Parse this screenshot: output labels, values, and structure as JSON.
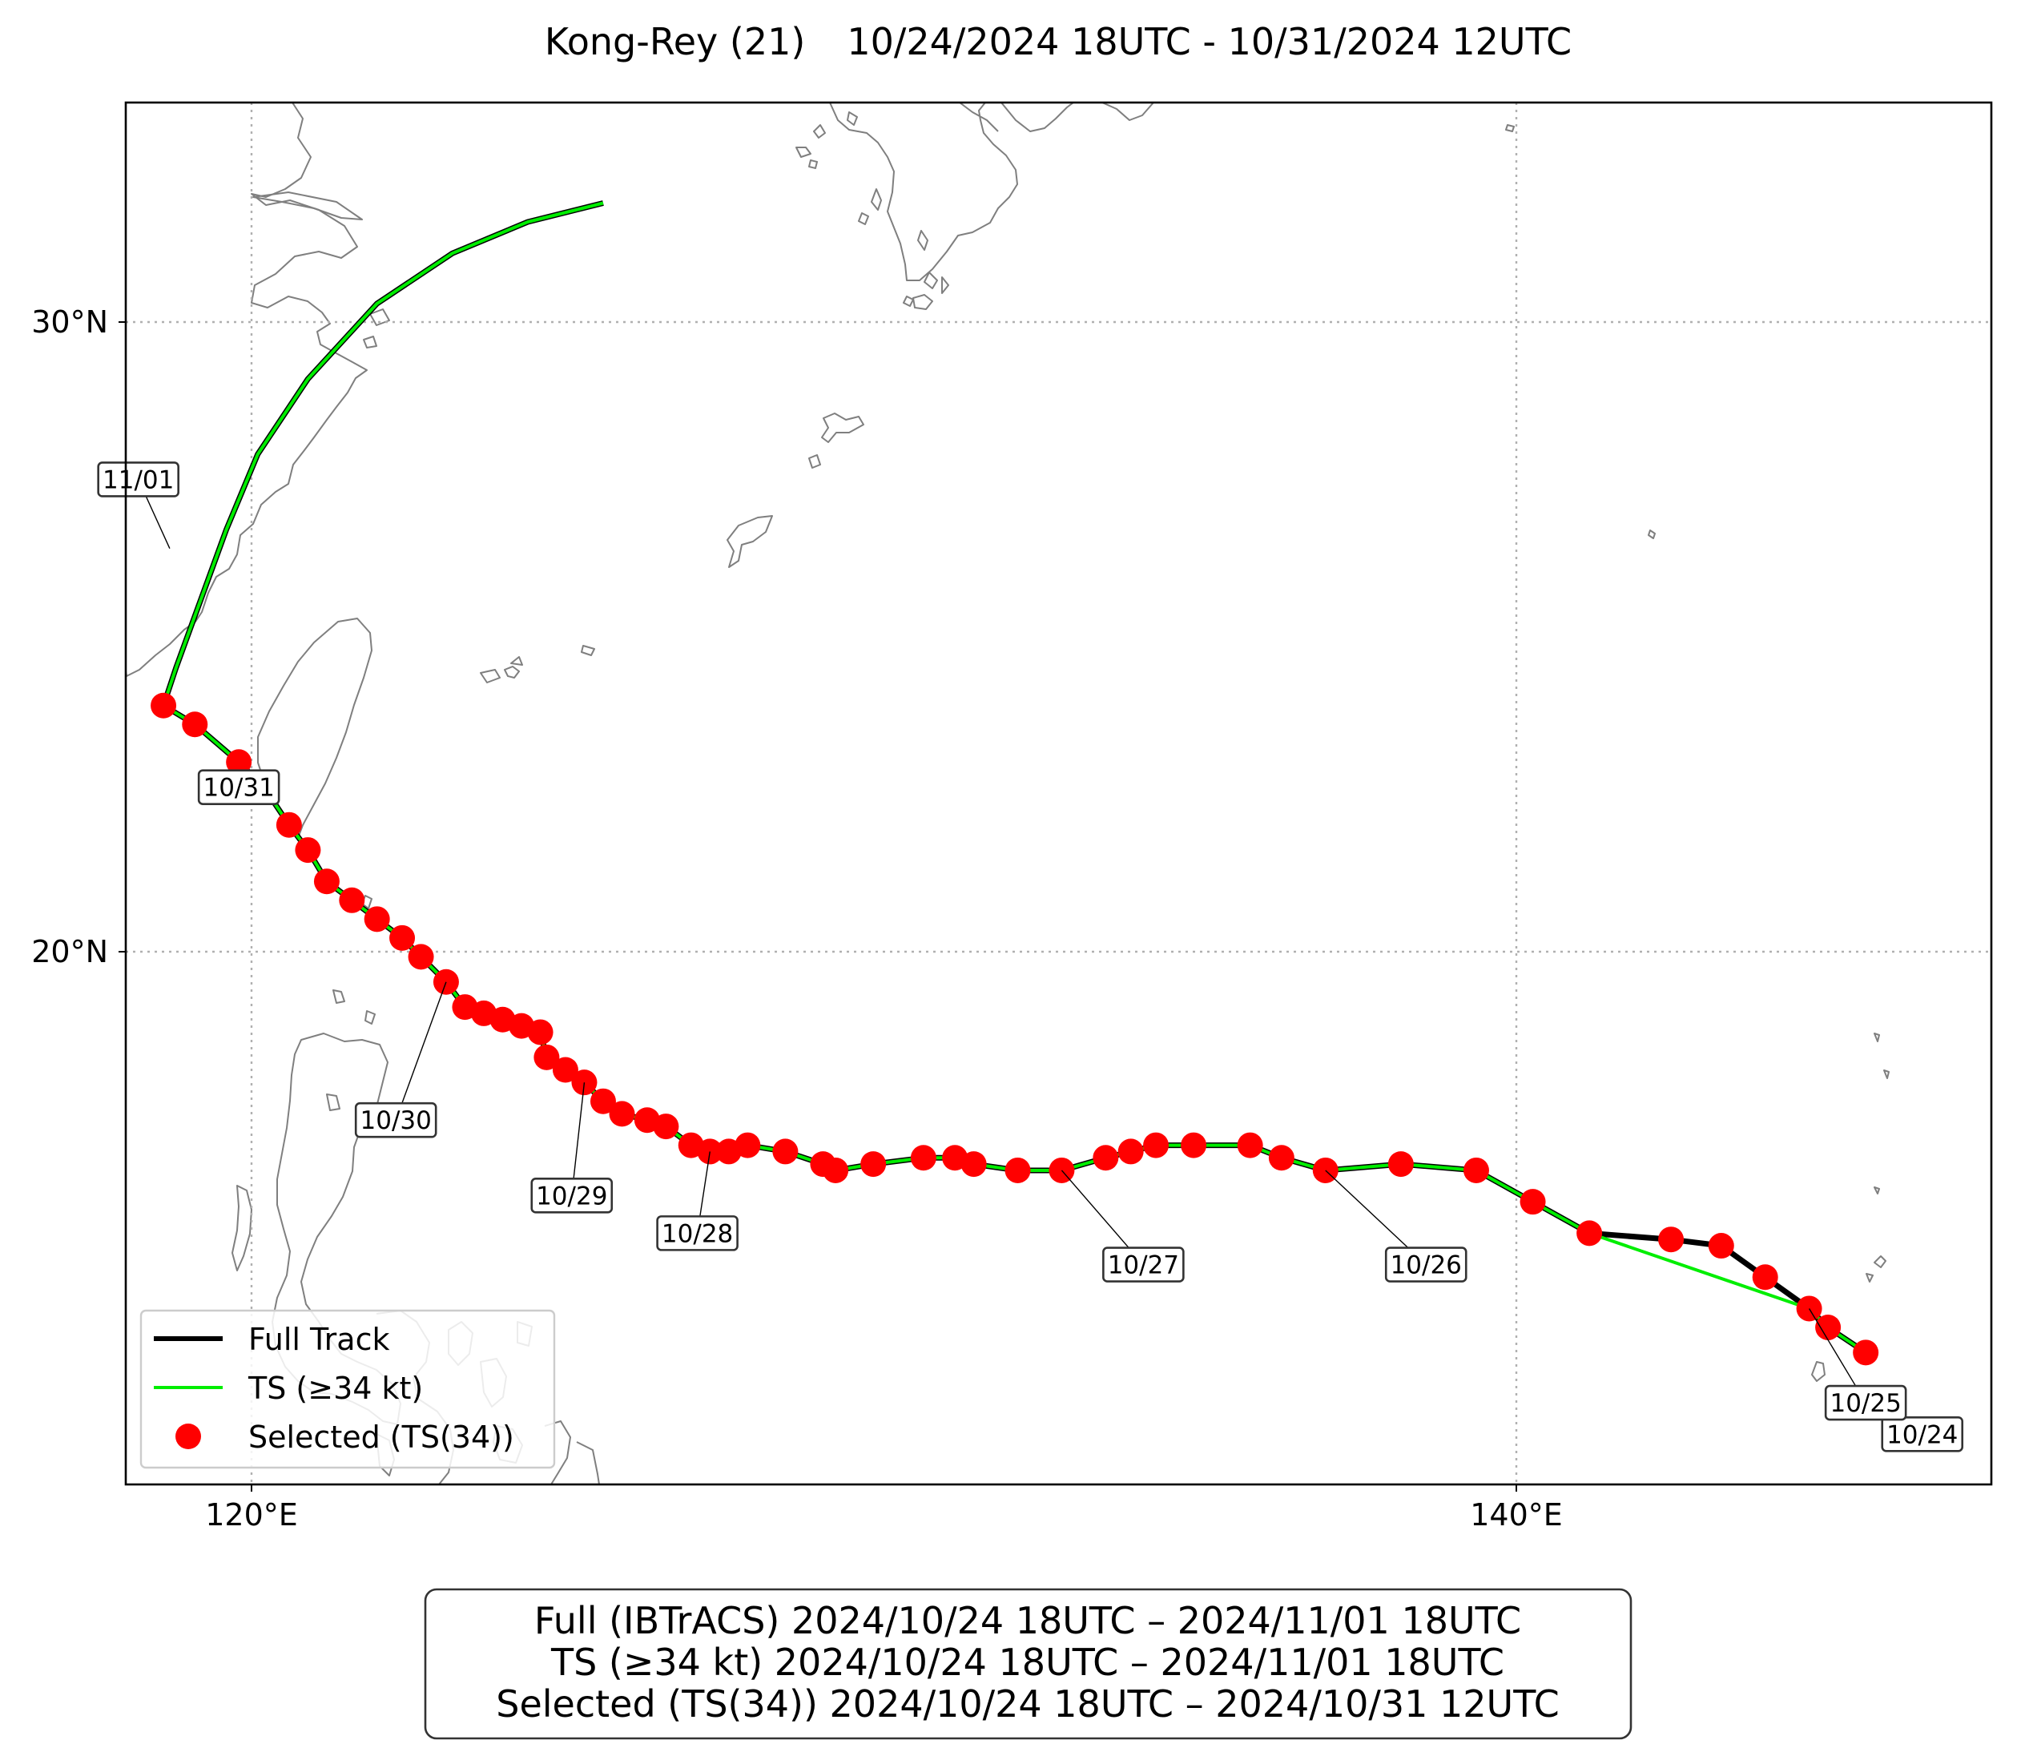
{
  "title": {
    "storm": "Kong-Rey (21)",
    "period": "10/24/2024 18UTC - 10/31/2024 12UTC"
  },
  "axes": {
    "lon_range": [
      118,
      147.7
    ],
    "lat_range": [
      11.5,
      33.5
    ],
    "lon_ticks": [
      {
        "value": 120,
        "label": "120°E"
      },
      {
        "value": 140,
        "label": "140°E"
      }
    ],
    "lat_ticks": [
      {
        "value": 20,
        "label": "20°N"
      },
      {
        "value": 30,
        "label": "30°N"
      }
    ],
    "grid": true
  },
  "colors": {
    "full_track": "#000000",
    "ts_track": "#00ee00",
    "selected": "#ff0000",
    "highlight": "#ffb3b3",
    "coast": "#7f7f7f"
  },
  "legend": {
    "placement": "lower-left",
    "items": [
      {
        "label": "Full Track",
        "kind": "line",
        "color": "#000000"
      },
      {
        "label": "TS (≥34 kt)",
        "kind": "line",
        "color": "#00ee00"
      },
      {
        "label": "Selected (TS(34))",
        "kind": "dot",
        "color": "#ff0000"
      }
    ]
  },
  "summary": [
    "Full (IBTrACS)   2024/10/24 18UTC – 2024/11/01 18UTC",
    "TS (≥34 kt)   2024/10/24 18UTC – 2024/11/01 18UTC",
    "Selected (TS(34))   2024/10/24 18UTC – 2024/10/31 12UTC"
  ],
  "chart_data": {
    "type": "scatter",
    "full_track": [
      [
        145.7,
        13.6
      ],
      [
        145.1,
        14.0
      ],
      [
        144.8,
        14.3
      ],
      [
        144.1,
        14.8
      ],
      [
        143.4,
        15.3
      ],
      [
        142.6,
        15.4
      ],
      [
        141.3,
        15.5
      ],
      [
        140.4,
        16.0
      ],
      [
        139.5,
        16.5
      ],
      [
        138.3,
        16.6
      ],
      [
        137.1,
        16.5
      ],
      [
        136.4,
        16.7
      ],
      [
        135.9,
        16.9
      ],
      [
        135.0,
        16.9
      ],
      [
        134.4,
        16.9
      ],
      [
        134.0,
        16.8
      ],
      [
        133.6,
        16.7
      ],
      [
        132.9,
        16.5
      ],
      [
        132.2,
        16.5
      ],
      [
        131.5,
        16.6
      ],
      [
        131.2,
        16.7
      ],
      [
        130.7,
        16.7
      ],
      [
        129.9,
        16.6
      ],
      [
        129.3,
        16.5
      ],
      [
        129.1,
        16.6
      ],
      [
        128.5,
        16.8
      ],
      [
        127.9,
        16.9
      ],
      [
        127.6,
        16.8
      ],
      [
        127.3,
        16.8
      ],
      [
        127.0,
        16.9
      ],
      [
        126.6,
        17.2
      ],
      [
        126.3,
        17.3
      ],
      [
        125.9,
        17.4
      ],
      [
        125.6,
        17.6
      ],
      [
        125.3,
        17.9
      ],
      [
        125.0,
        18.1
      ],
      [
        124.7,
        18.3
      ],
      [
        124.6,
        18.7
      ],
      [
        124.3,
        18.8
      ],
      [
        124.0,
        18.9
      ],
      [
        123.7,
        19.0
      ],
      [
        123.4,
        19.1
      ],
      [
        123.1,
        19.5
      ],
      [
        122.7,
        19.9
      ],
      [
        122.4,
        20.2
      ],
      [
        122.0,
        20.5
      ],
      [
        121.6,
        20.8
      ],
      [
        121.2,
        21.1
      ],
      [
        120.9,
        21.6
      ],
      [
        120.6,
        22.0
      ],
      [
        120.2,
        22.6
      ],
      [
        119.8,
        23.0
      ],
      [
        119.1,
        23.6
      ],
      [
        118.6,
        23.9
      ],
      [
        118.8,
        24.5
      ],
      [
        119.2,
        25.6
      ],
      [
        119.6,
        26.7
      ],
      [
        120.1,
        27.9
      ],
      [
        120.9,
        29.1
      ],
      [
        122.0,
        30.3
      ],
      [
        123.2,
        31.1
      ],
      [
        124.4,
        31.6
      ],
      [
        125.6,
        31.9
      ]
    ],
    "ts_track": [
      [
        145.7,
        13.6
      ],
      [
        145.1,
        14.0
      ],
      [
        144.8,
        14.3
      ],
      [
        141.3,
        15.5
      ],
      [
        140.4,
        16.0
      ],
      [
        139.5,
        16.5
      ],
      [
        138.3,
        16.6
      ],
      [
        137.1,
        16.5
      ],
      [
        136.4,
        16.7
      ],
      [
        135.9,
        16.9
      ],
      [
        135.0,
        16.9
      ],
      [
        134.4,
        16.9
      ],
      [
        134.0,
        16.8
      ],
      [
        133.6,
        16.7
      ],
      [
        132.9,
        16.5
      ],
      [
        132.2,
        16.5
      ],
      [
        131.5,
        16.6
      ],
      [
        131.2,
        16.7
      ],
      [
        130.7,
        16.7
      ],
      [
        129.9,
        16.6
      ],
      [
        129.3,
        16.5
      ],
      [
        129.1,
        16.6
      ],
      [
        128.5,
        16.8
      ],
      [
        127.9,
        16.9
      ],
      [
        127.6,
        16.8
      ],
      [
        127.3,
        16.8
      ],
      [
        127.0,
        16.9
      ],
      [
        126.6,
        17.2
      ],
      [
        126.3,
        17.3
      ],
      [
        125.9,
        17.4
      ],
      [
        125.6,
        17.6
      ],
      [
        125.3,
        17.9
      ],
      [
        125.0,
        18.1
      ],
      [
        124.7,
        18.3
      ],
      [
        124.6,
        18.7
      ],
      [
        124.3,
        18.8
      ],
      [
        124.0,
        18.9
      ],
      [
        123.7,
        19.0
      ],
      [
        123.4,
        19.1
      ],
      [
        123.1,
        19.5
      ],
      [
        122.7,
        19.9
      ],
      [
        122.4,
        20.2
      ],
      [
        122.0,
        20.5
      ],
      [
        121.6,
        20.8
      ],
      [
        121.2,
        21.1
      ],
      [
        120.9,
        21.6
      ],
      [
        120.6,
        22.0
      ],
      [
        120.2,
        22.6
      ],
      [
        119.8,
        23.0
      ],
      [
        119.1,
        23.6
      ],
      [
        118.6,
        23.9
      ],
      [
        118.8,
        24.5
      ],
      [
        119.2,
        25.6
      ],
      [
        119.6,
        26.7
      ],
      [
        120.1,
        27.9
      ],
      [
        120.9,
        29.1
      ],
      [
        122.0,
        30.3
      ],
      [
        123.2,
        31.1
      ],
      [
        124.4,
        31.6
      ],
      [
        125.6,
        31.9
      ]
    ],
    "selected_points": [
      [
        145.7,
        13.6
      ],
      [
        145.1,
        14.0
      ],
      [
        144.8,
        14.3
      ],
      [
        144.1,
        14.8
      ],
      [
        143.4,
        15.3
      ],
      [
        142.6,
        15.4
      ],
      [
        141.3,
        15.5
      ],
      [
        140.4,
        16.0
      ],
      [
        139.5,
        16.5
      ],
      [
        138.3,
        16.6
      ],
      [
        137.1,
        16.5
      ],
      [
        136.4,
        16.7
      ],
      [
        135.9,
        16.9
      ],
      [
        135.0,
        16.9
      ],
      [
        134.4,
        16.9
      ],
      [
        134.0,
        16.8
      ],
      [
        133.6,
        16.7
      ],
      [
        132.9,
        16.5
      ],
      [
        132.2,
        16.5
      ],
      [
        131.5,
        16.6
      ],
      [
        131.2,
        16.7
      ],
      [
        130.7,
        16.7
      ],
      [
        129.9,
        16.6
      ],
      [
        129.3,
        16.5
      ],
      [
        129.1,
        16.6
      ],
      [
        128.5,
        16.8
      ],
      [
        127.9,
        16.9
      ],
      [
        127.6,
        16.8
      ],
      [
        127.3,
        16.8
      ],
      [
        127.0,
        16.9
      ],
      [
        126.6,
        17.2
      ],
      [
        126.3,
        17.3
      ],
      [
        125.9,
        17.4
      ],
      [
        125.6,
        17.6
      ],
      [
        125.3,
        17.9
      ],
      [
        125.0,
        18.1
      ],
      [
        124.7,
        18.3
      ],
      [
        124.6,
        18.7
      ],
      [
        124.3,
        18.8
      ],
      [
        124.0,
        18.9
      ],
      [
        123.7,
        19.0
      ],
      [
        123.4,
        19.1
      ],
      [
        123.1,
        19.5
      ],
      [
        122.7,
        19.9
      ],
      [
        122.4,
        20.2
      ],
      [
        122.0,
        20.5
      ],
      [
        121.6,
        20.8
      ],
      [
        121.2,
        21.1
      ],
      [
        120.9,
        21.6
      ],
      [
        120.6,
        22.0
      ],
      [
        119.8,
        23.0
      ],
      [
        119.1,
        23.6
      ],
      [
        118.6,
        23.9
      ]
    ],
    "highlight_points": [
      [
        120.2,
        22.6
      ]
    ],
    "date_labels": [
      {
        "text": "10/24",
        "at": [
          146.6,
          12.3
        ],
        "anchor": [
          146.6,
          12.3
        ]
      },
      {
        "text": "10/25",
        "at": [
          145.7,
          12.8
        ],
        "anchor": [
          144.8,
          14.3
        ]
      },
      {
        "text": "10/26",
        "at": [
          138.7,
          15.0
        ],
        "anchor": [
          137.1,
          16.5
        ]
      },
      {
        "text": "10/27",
        "at": [
          134.2,
          15.0
        ],
        "anchor": [
          132.9,
          16.5
        ]
      },
      {
        "text": "10/28",
        "at": [
          127.1,
          15.5
        ],
        "anchor": [
          127.3,
          16.8
        ]
      },
      {
        "text": "10/29",
        "at": [
          125.1,
          16.1
        ],
        "anchor": [
          125.3,
          17.9
        ]
      },
      {
        "text": "10/30",
        "at": [
          122.3,
          17.3
        ],
        "anchor": [
          123.1,
          19.5
        ]
      },
      {
        "text": "10/31",
        "at": [
          119.8,
          22.6
        ],
        "anchor": [
          120.2,
          22.4
        ]
      },
      {
        "text": "11/01",
        "at": [
          118.2,
          27.5
        ],
        "anchor": [
          118.7,
          26.4
        ]
      }
    ]
  }
}
